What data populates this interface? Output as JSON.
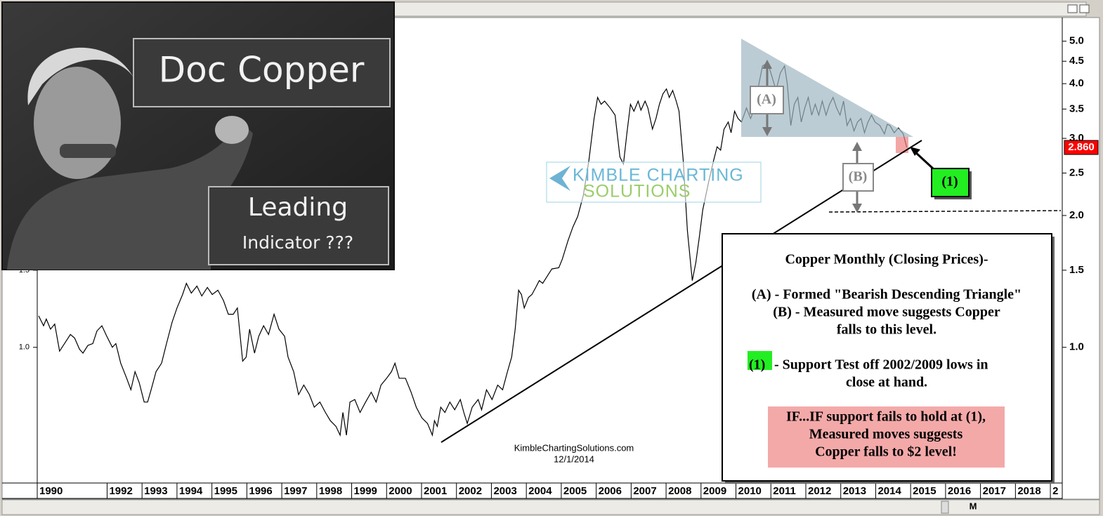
{
  "chart_data": {
    "type": "line",
    "log_scale": true,
    "grid": false,
    "color": "#000000",
    "xlim": [
      1990,
      2019.3
    ],
    "xticks": [
      1990,
      1992,
      1993,
      1994,
      1995,
      1996,
      1997,
      1998,
      1999,
      2000,
      2001,
      2002,
      2003,
      2004,
      2005,
      2006,
      2007,
      2008,
      2009,
      2010,
      2011,
      2012,
      2013,
      2014,
      2015,
      2016,
      2017,
      2018,
      {
        "value": 2019,
        "label": "2"
      }
    ],
    "ylim": [
      0.49,
      5.6
    ],
    "yticks": [
      {
        "value": 1,
        "label": "1.0"
      },
      {
        "value": 1.5,
        "label": "1.5"
      },
      {
        "value": 2,
        "label": "2.0"
      },
      {
        "value": 2.5,
        "label": "2.5"
      },
      {
        "value": 3,
        "label": "3.0"
      },
      {
        "value": 3.5,
        "label": "3.5"
      },
      {
        "value": 4,
        "label": "4.0"
      },
      {
        "value": 4.5,
        "label": "4.5"
      },
      {
        "value": 5,
        "label": "5.0"
      }
    ],
    "left_yticks": [
      {
        "value": 1,
        "label": "1.0"
      },
      {
        "value": 1.5,
        "label": "1.5"
      }
    ],
    "last_value": {
      "value": 2.86,
      "label": "2.860"
    },
    "x": [
      1990.04,
      1990.18,
      1990.26,
      1990.38,
      1990.5,
      1990.64,
      1990.78,
      1990.95,
      1991.07,
      1991.21,
      1991.31,
      1991.45,
      1991.59,
      1991.71,
      1991.85,
      1991.99,
      1992.15,
      1992.25,
      1992.39,
      1992.56,
      1992.68,
      1992.8,
      1992.92,
      1993.06,
      1993.16,
      1993.26,
      1993.4,
      1993.56,
      1993.7,
      1993.86,
      1994.0,
      1994.16,
      1994.27,
      1994.41,
      1994.57,
      1994.71,
      1994.87,
      1995.01,
      1995.17,
      1995.33,
      1995.47,
      1995.61,
      1995.73,
      1995.88,
      1995.98,
      1996.08,
      1996.22,
      1996.34,
      1996.48,
      1996.62,
      1996.78,
      1996.92,
      1997.08,
      1997.18,
      1997.34,
      1997.48,
      1997.63,
      1997.79,
      1997.93,
      1998.09,
      1998.25,
      1998.39,
      1998.55,
      1998.67,
      1998.75,
      1998.85,
      1998.95,
      1999.09,
      1999.24,
      1999.4,
      1999.56,
      1999.7,
      1999.84,
      2000.0,
      2000.14,
      2000.24,
      2000.36,
      2000.54,
      2000.7,
      2000.85,
      2001.01,
      2001.17,
      2001.31,
      2001.37,
      2001.45,
      2001.55,
      2001.67,
      2001.81,
      2001.95,
      2002.11,
      2002.21,
      2002.31,
      2002.45,
      2002.62,
      2002.72,
      2002.86,
      2003.02,
      2003.18,
      2003.32,
      2003.46,
      2003.58,
      2003.68,
      2003.78,
      2003.86,
      2003.94,
      2004.06,
      2004.16,
      2004.27,
      2004.37,
      2004.47,
      2004.59,
      2004.73,
      2004.93,
      2005.03,
      2005.19,
      2005.33,
      2005.47,
      2005.63,
      2005.79,
      2005.94,
      2006.04,
      2006.14,
      2006.24,
      2006.4,
      2006.54,
      2006.68,
      2006.78,
      2006.88,
      2006.98,
      2007.08,
      2007.2,
      2007.28,
      2007.4,
      2007.48,
      2007.61,
      2007.71,
      2007.81,
      2007.91,
      2008.01,
      2008.09,
      2008.19,
      2008.29,
      2008.37,
      2008.49,
      2008.61,
      2008.75,
      2008.85,
      2008.95,
      2009.05,
      2009.22,
      2009.36,
      2009.46,
      2009.56,
      2009.66,
      2009.78,
      2009.86,
      2009.96,
      2010.06,
      2010.16,
      2010.3,
      2010.42,
      2010.5,
      2010.62,
      2010.76,
      2010.91,
      2011.03,
      2011.15,
      2011.27,
      2011.39,
      2011.47,
      2011.57,
      2011.67,
      2011.77,
      2011.87,
      2011.97,
      2012.07,
      2012.17,
      2012.27,
      2012.37,
      2012.47,
      2012.58,
      2012.68,
      2012.78,
      2012.88,
      2012.98,
      2013.08,
      2013.18,
      2013.28,
      2013.38,
      2013.48,
      2013.58,
      2013.68,
      2013.78,
      2013.88,
      2013.98,
      2014.12,
      2014.25,
      2014.33,
      2014.41,
      2014.53,
      2014.65,
      2014.79,
      2014.89
    ],
    "values": [
      1.18,
      1.12,
      1.16,
      1.1,
      1.13,
      0.98,
      1.02,
      1.07,
      1.05,
      0.99,
      0.97,
      1.01,
      1.02,
      1.09,
      1.12,
      1.06,
      1.0,
      1.02,
      0.92,
      0.85,
      0.8,
      0.88,
      0.83,
      0.75,
      0.75,
      0.8,
      0.88,
      0.92,
      1.02,
      1.14,
      1.23,
      1.32,
      1.4,
      1.33,
      1.38,
      1.31,
      1.37,
      1.32,
      1.35,
      1.28,
      1.19,
      1.19,
      1.23,
      0.93,
      0.95,
      1.1,
      0.97,
      1.06,
      1.12,
      1.07,
      1.19,
      1.1,
      1.06,
      0.95,
      0.88,
      0.78,
      0.82,
      0.78,
      0.73,
      0.75,
      0.71,
      0.68,
      0.66,
      0.63,
      0.71,
      0.63,
      0.75,
      0.76,
      0.71,
      0.75,
      0.79,
      0.75,
      0.82,
      0.85,
      0.88,
      0.92,
      0.85,
      0.85,
      0.79,
      0.73,
      0.69,
      0.67,
      0.63,
      0.68,
      0.66,
      0.73,
      0.71,
      0.75,
      0.72,
      0.76,
      0.71,
      0.67,
      0.73,
      0.76,
      0.72,
      0.8,
      0.76,
      0.82,
      0.8,
      0.88,
      0.95,
      1.1,
      1.35,
      1.32,
      1.23,
      1.3,
      1.32,
      1.37,
      1.42,
      1.4,
      1.45,
      1.51,
      1.52,
      1.59,
      1.75,
      1.88,
      1.99,
      2.22,
      2.67,
      3.33,
      3.72,
      3.59,
      3.65,
      3.52,
      3.39,
      2.72,
      2.62,
      3.09,
      3.59,
      3.46,
      3.65,
      3.48,
      3.65,
      3.52,
      3.15,
      3.33,
      3.59,
      3.79,
      3.89,
      3.72,
      3.86,
      3.65,
      3.46,
      2.67,
      1.85,
      1.42,
      1.56,
      1.78,
      2.06,
      2.39,
      2.67,
      2.87,
      2.82,
      3.15,
      3.27,
      3.09,
      3.46,
      3.33,
      3.27,
      3.52,
      3.33,
      3.46,
      3.86,
      4.39,
      4.47,
      4.15,
      3.86,
      4.23,
      4.39,
      4.0,
      3.21,
      3.59,
      3.72,
      3.27,
      3.52,
      3.72,
      3.39,
      3.59,
      3.39,
      3.65,
      3.39,
      3.59,
      3.72,
      3.52,
      3.39,
      3.65,
      3.21,
      3.33,
      3.12,
      3.27,
      3.33,
      3.09,
      3.27,
      3.39,
      3.27,
      3.21,
      3.07,
      3.23,
      3.21,
      3.09,
      3.17,
      3.07,
      2.86
    ],
    "annotations": {
      "inset_title": "Doc Copper",
      "inset_sub1": "Leading",
      "inset_sub2": "Indicator ???",
      "label_a": "(A)",
      "label_b": "(B)",
      "label_1": "(1)",
      "logo_line1": "KIMBLE CHARTING",
      "logo_line2": "SOLUTIONS",
      "source": "KimbleChartingSolutions.com",
      "date": "12/1/2014",
      "box_title": "Copper Monthly (Closing Prices)-",
      "box_a": "(A) - Formed \"Bearish Descending Triangle\"",
      "box_b1": "(B) - Measured move suggests Copper",
      "box_b2": "falls to this level.",
      "box_1_tag": "(1)",
      "box_1a": " - Support Test off 2002/2009 lows in",
      "box_1b": "close at hand.",
      "warn1": "IF...IF support fails to hold at (1),",
      "warn2": "Measured moves suggests",
      "warn3": "Copper falls to $2 level!",
      "toolbar_m": "M"
    }
  }
}
